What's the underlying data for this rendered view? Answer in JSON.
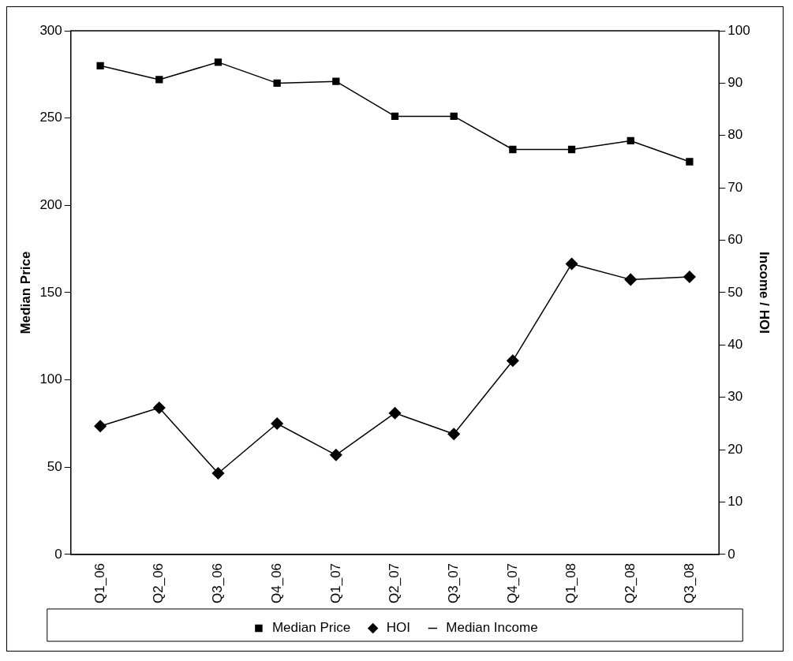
{
  "chart_data": {
    "type": "line",
    "categories": [
      "Q1_06",
      "Q2_06",
      "Q3_06",
      "Q4_06",
      "Q1_07",
      "Q2_07",
      "Q3_07",
      "Q4_07",
      "Q1_08",
      "Q2_08",
      "Q3_08"
    ],
    "ylabel": "Median Price",
    "y2label": "Income / HOI",
    "ylim": [
      0,
      300
    ],
    "yticks": [
      0,
      50,
      100,
      150,
      200,
      250,
      300
    ],
    "y2lim": [
      0,
      100
    ],
    "y2ticks": [
      0,
      10,
      20,
      30,
      40,
      50,
      60,
      70,
      80,
      90,
      100
    ],
    "grid": false,
    "legend": "bottom",
    "line_style": "solid",
    "series": [
      {
        "name": "Median Price",
        "color": "#000000",
        "marker": "square",
        "values": [
          280,
          272,
          282,
          270,
          271,
          251,
          251,
          232,
          232,
          237,
          225
        ]
      },
      {
        "name": "HOI",
        "color": "#000000",
        "marker": "diamond",
        "axis": "y2",
        "values": [
          24.5,
          28,
          15.5,
          25,
          19,
          27,
          23,
          37,
          55.5,
          52.5,
          53
        ]
      },
      {
        "name": "Median Income",
        "color": "#000000",
        "marker": "none",
        "axis": "y2",
        "values": [
          null,
          null,
          null,
          null,
          null,
          null,
          null,
          null,
          null,
          null,
          null
        ]
      }
    ]
  }
}
